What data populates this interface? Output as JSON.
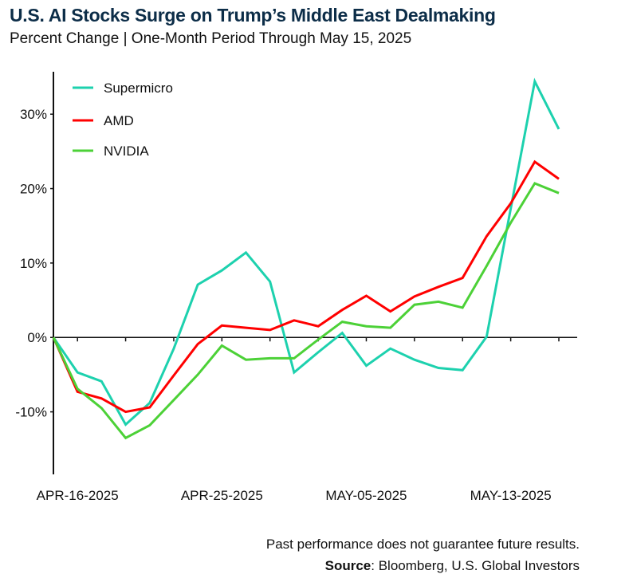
{
  "chart_data": {
    "type": "line",
    "title": "U.S. AI Stocks Surge on Trump’s Middle East Dealmaking",
    "subtitle": "Percent Change | One-Month Period Through May 15, 2025",
    "xlabel": "",
    "ylabel": "",
    "x": [
      "2025-04-15",
      "2025-04-16",
      "2025-04-17",
      "2025-04-21",
      "2025-04-22",
      "2025-04-23",
      "2025-04-24",
      "2025-04-25",
      "2025-04-28",
      "2025-04-29",
      "2025-04-30",
      "2025-05-01",
      "2025-05-02",
      "2025-05-05",
      "2025-05-06",
      "2025-05-07",
      "2025-05-08",
      "2025-05-09",
      "2025-05-12",
      "2025-05-13",
      "2025-05-14",
      "2025-05-15"
    ],
    "x_tick_labels": [
      {
        "index": 1,
        "label": "APR-16-2025"
      },
      {
        "index": 7,
        "label": "APR-25-2025"
      },
      {
        "index": 13,
        "label": "MAY-05-2025"
      },
      {
        "index": 19,
        "label": "MAY-13-2025"
      }
    ],
    "x_minor_tick_every": 2,
    "y_ticks": [
      {
        "value": 30,
        "label": "30%"
      },
      {
        "value": 20,
        "label": "20%"
      },
      {
        "value": 10,
        "label": "10%"
      },
      {
        "value": 0,
        "label": "0%"
      },
      {
        "value": -10,
        "label": "-10%"
      }
    ],
    "ylim": [
      -18.4,
      35.7
    ],
    "grid": false,
    "legend_position": "top-left",
    "series": [
      {
        "name": "Supermicro",
        "color": "#1dd1ae",
        "values": [
          0,
          -4.7,
          -5.9,
          -11.7,
          -8.8,
          -1.5,
          7.1,
          9.0,
          11.4,
          7.5,
          -4.7,
          -2.0,
          0.6,
          -3.8,
          -1.5,
          -3.0,
          -4.1,
          -4.4,
          0.1,
          17.3,
          34.4,
          28.0
        ]
      },
      {
        "name": "AMD",
        "color": "#ff0000",
        "values": [
          0,
          -7.3,
          -8.2,
          -10.0,
          -9.4,
          -5.1,
          -0.9,
          1.6,
          1.3,
          1.0,
          2.3,
          1.5,
          3.7,
          5.6,
          3.5,
          5.5,
          6.8,
          8.0,
          13.6,
          18.0,
          23.6,
          21.3
        ]
      },
      {
        "name": "NVIDIA",
        "color": "#4cd137",
        "values": [
          0,
          -6.9,
          -9.5,
          -13.5,
          -11.8,
          -8.4,
          -5.0,
          -1.1,
          -3.0,
          -2.8,
          -2.8,
          -0.3,
          2.1,
          1.5,
          1.3,
          4.4,
          4.8,
          4.0,
          9.6,
          15.4,
          20.7,
          19.4
        ]
      }
    ]
  },
  "footer": {
    "disclaimer": "Past performance does not guarantee future results.",
    "source_label": "Source",
    "source_text": ": Bloomberg, U.S. Global Investors"
  },
  "colors": {
    "title": "#0c2d48",
    "axis": "#111111"
  }
}
